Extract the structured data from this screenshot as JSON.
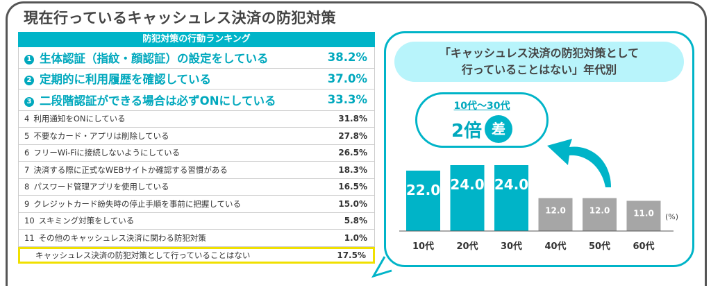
{
  "title": "現在行っているキャッシュレス決済の防犯対策",
  "table": {
    "header": "防犯対策の行動ランキング",
    "top": [
      {
        "num": "1",
        "label": "生体認証（指紋・顔認証）の設定をしている",
        "pct": "38.2%"
      },
      {
        "num": "2",
        "label": "定期的に利用履歴を確認している",
        "pct": "37.0%"
      },
      {
        "num": "3",
        "label": "二段階認証ができる場合は必ずONにしている",
        "pct": "33.3%"
      }
    ],
    "rows": [
      {
        "num": "4",
        "label": "利用通知をONにしている",
        "pct": "31.8%"
      },
      {
        "num": "5",
        "label": "不要なカード・アプリは削除している",
        "pct": "27.8%"
      },
      {
        "num": "6",
        "label": "フリーWi-Fiに接続しないようにしている",
        "pct": "26.5%"
      },
      {
        "num": "7",
        "label": "決済する際に正式なWEBサイトか確認する習慣がある",
        "pct": "18.3%"
      },
      {
        "num": "8",
        "label": "パスワード管理アプリを使用している",
        "pct": "16.5%"
      },
      {
        "num": "9",
        "label": "クレジットカード紛失時の停止手順を事前に把握している",
        "pct": "15.0%"
      },
      {
        "num": "10",
        "label": "スキミング対策をしている",
        "pct": "5.8%"
      },
      {
        "num": "11",
        "label": "その他のキャッシュレス決済に関わる防犯対策",
        "pct": "1.0%"
      }
    ],
    "highlight": {
      "label": "キャッシュレス決済の防犯対策として行っていることはない",
      "pct": "17.5%"
    }
  },
  "panel": {
    "title_line1": "「キャッシュレス決済の防犯対策として",
    "title_line2": "行っていることはない」年代別",
    "callout_range": "10代～30代",
    "callout_value": "2倍",
    "callout_badge": "差"
  },
  "chart_data": {
    "type": "bar",
    "title": "「キャッシュレス決済の防犯対策として行っていることはない」年代別",
    "categories": [
      "10代",
      "20代",
      "30代",
      "40代",
      "50代",
      "60代"
    ],
    "values": [
      22.0,
      24.0,
      24.0,
      12.0,
      12.0,
      11.0
    ],
    "labels": [
      "22.0",
      "24.0",
      "24.0",
      "12.0",
      "12.0",
      "11.0"
    ],
    "unit": "(%)",
    "colors": [
      "#00b4c8",
      "#00b4c8",
      "#00b4c8",
      "#a6a6a6",
      "#a6a6a6",
      "#a6a6a6"
    ],
    "ylim": [
      0,
      24
    ]
  }
}
